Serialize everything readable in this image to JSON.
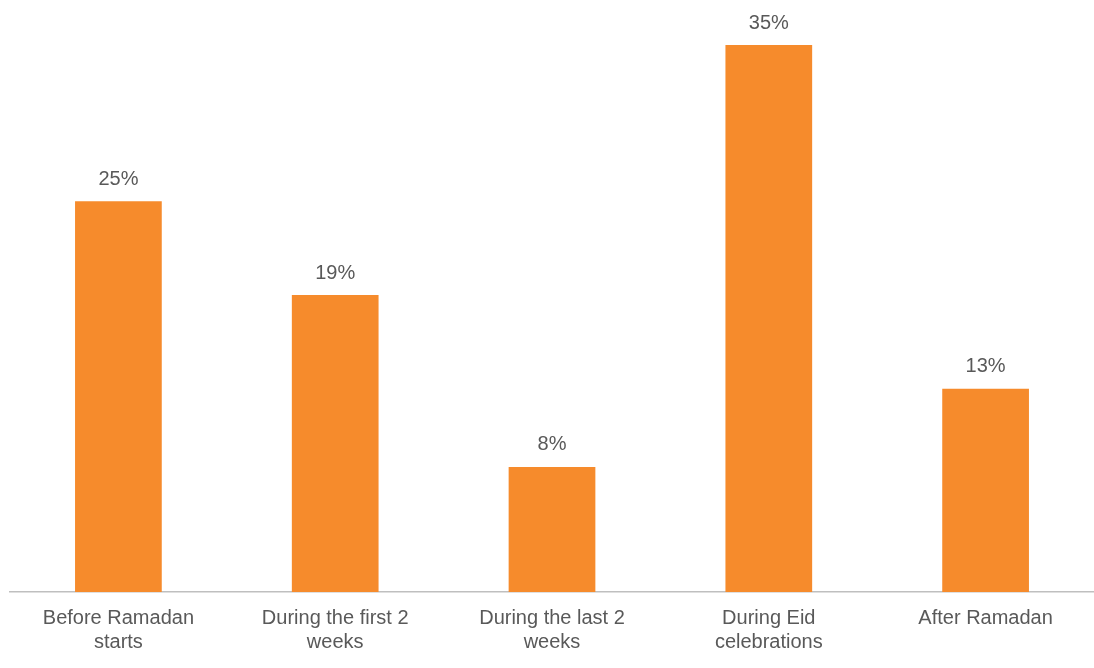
{
  "chart_data": {
    "type": "bar",
    "categories": [
      "Before Ramadan starts",
      "During the first 2 weeks",
      "During the last 2 weeks",
      "During Eid celebrations",
      "After Ramadan"
    ],
    "values": [
      25,
      19,
      8,
      35,
      13
    ],
    "value_labels": [
      "25%",
      "19%",
      "8%",
      "35%",
      "13%"
    ],
    "color": "#f68b2c",
    "grid": false,
    "legend": false
  }
}
